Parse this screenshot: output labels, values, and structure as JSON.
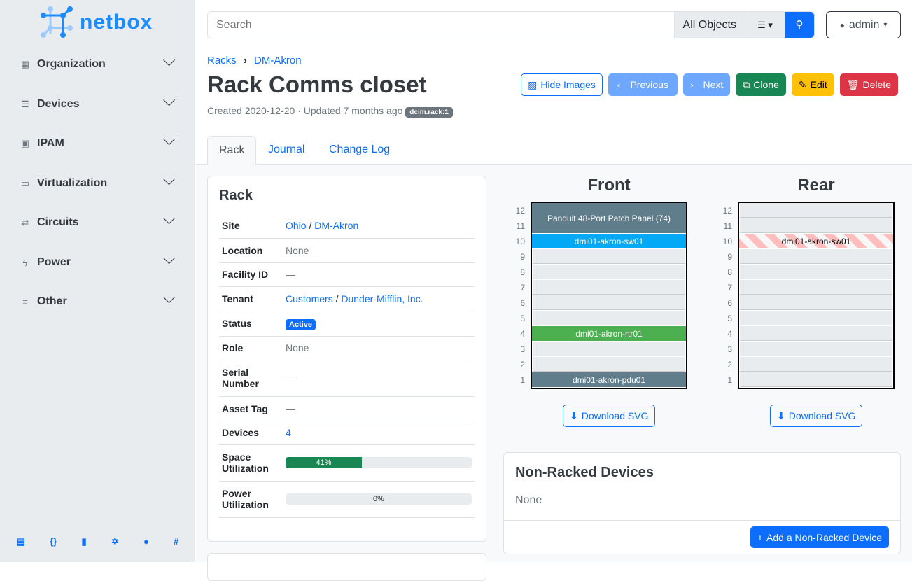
{
  "brand": "netbox",
  "sidebar": {
    "items": [
      {
        "label": "Organization",
        "icon": "building-icon"
      },
      {
        "label": "Devices",
        "icon": "server-icon"
      },
      {
        "label": "IPAM",
        "icon": "ip-icon"
      },
      {
        "label": "Virtualization",
        "icon": "monitor-icon"
      },
      {
        "label": "Circuits",
        "icon": "circuit-icon"
      },
      {
        "label": "Power",
        "icon": "bolt-icon"
      },
      {
        "label": "Other",
        "icon": "list-icon"
      }
    ],
    "footer": [
      "book-icon",
      "api-icon",
      "docs-icon",
      "graphql-icon",
      "github-icon",
      "slack-icon"
    ]
  },
  "search": {
    "placeholder": "Search",
    "scope": "All Objects"
  },
  "user": "admin",
  "breadcrumb": [
    "Racks",
    "DM-Akron"
  ],
  "title": "Rack Comms closet",
  "meta": "Created 2020-12-20 · Updated 7 months ago",
  "badge": "dcim.rack:1",
  "buttons": {
    "hide_images": "Hide Images",
    "previous": "Previous",
    "next": "Next",
    "clone": "Clone",
    "edit": "Edit",
    "delete": "Delete"
  },
  "tabs": [
    "Rack",
    "Journal",
    "Change Log"
  ],
  "rack_card": {
    "title": "Rack",
    "rows": [
      {
        "k": "Site",
        "links": [
          "Ohio",
          "DM-Akron"
        ]
      },
      {
        "k": "Location",
        "v": "None"
      },
      {
        "k": "Facility ID",
        "v": "—"
      },
      {
        "k": "Tenant",
        "links": [
          "Customers",
          "Dunder-Mifflin, Inc."
        ]
      },
      {
        "k": "Status",
        "badge": "Active"
      },
      {
        "k": "Role",
        "v": "None"
      },
      {
        "k": "Serial Number",
        "v": "—"
      },
      {
        "k": "Asset Tag",
        "v": "—"
      },
      {
        "k": "Devices",
        "link": "4"
      },
      {
        "k": "Space Utilization",
        "progress": 41,
        "label": "41%"
      },
      {
        "k": "Power Utilization",
        "progress": 0,
        "label": "0%"
      }
    ]
  },
  "elevation": {
    "front_title": "Front",
    "rear_title": "Rear",
    "units": [
      12,
      11,
      10,
      9,
      8,
      7,
      6,
      5,
      4,
      3,
      2,
      1
    ],
    "front": [
      {
        "name": "Panduit 48-Port Patch Panel (74)",
        "top": 12,
        "height": 2,
        "color": "#607d8b"
      },
      {
        "name": "dmi01-akron-sw01",
        "top": 10,
        "height": 1,
        "color": "#03a9f4"
      },
      {
        "name": "dmi01-akron-rtr01",
        "top": 4,
        "height": 1,
        "color": "#4caf50"
      },
      {
        "name": "dmi01-akron-pdu01",
        "top": 1,
        "height": 1,
        "color": "#607d8b"
      }
    ],
    "rear": [
      {
        "name": "dmi01-akron-sw01",
        "top": 10,
        "height": 1,
        "striped": true
      }
    ],
    "download": "Download SVG"
  },
  "nonracked": {
    "title": "Non-Racked Devices",
    "value": "None",
    "add": "Add a Non-Racked Device"
  }
}
